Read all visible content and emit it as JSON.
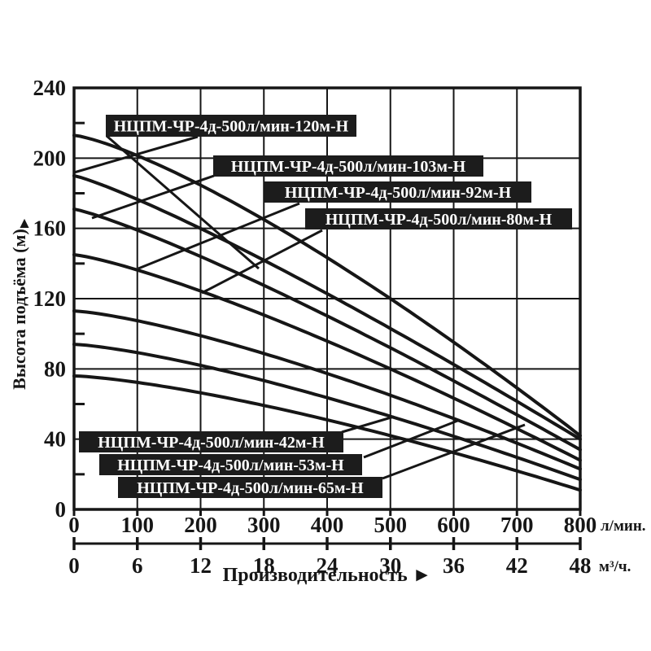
{
  "colors": {
    "ink": "#161616",
    "background": "#ffffff",
    "label_box_bg": "#1c1c1c",
    "label_text": "#ffffff"
  },
  "y_axis": {
    "title": "Высота подъёма (м)",
    "arrow": "▲",
    "major_ticks": [
      0,
      40,
      80,
      120,
      160,
      200,
      240
    ],
    "minor_step": 20
  },
  "x_axis": {
    "title": "Производительность",
    "arrow": "►",
    "primary": {
      "unit": "л/мин.",
      "ticks": [
        0,
        100,
        200,
        300,
        400,
        500,
        600,
        700,
        800
      ]
    },
    "secondary": {
      "unit": "м³/ч.",
      "ticks": [
        0,
        6,
        12,
        18,
        24,
        30,
        36,
        42,
        48
      ]
    }
  },
  "chart_data": {
    "type": "line",
    "title": "",
    "xlabel": "Производительность",
    "ylabel": "Высота подъёма (м)",
    "x_units": [
      "л/мин.",
      "м³/ч."
    ],
    "xlim_lpm": [
      0,
      800
    ],
    "ylim_m": [
      0,
      240
    ],
    "x_grid_step_lpm": 100,
    "y_grid_step_m": 40,
    "grid": true,
    "legend_position": "callout-boxes",
    "series": [
      {
        "name": "НЦПМ-ЧР-4д-500л/мин-120м-Н",
        "points_lpm_m": [
          [
            0,
            213
          ],
          [
            500,
            120
          ],
          [
            800,
            42
          ]
        ]
      },
      {
        "name": "НЦПМ-ЧР-4д-500л/мин-103м-Н",
        "points_lpm_m": [
          [
            0,
            190
          ],
          [
            500,
            103
          ],
          [
            800,
            40
          ]
        ]
      },
      {
        "name": "НЦПМ-ЧР-4д-500л/мин-92м-Н",
        "points_lpm_m": [
          [
            0,
            171
          ],
          [
            500,
            92
          ],
          [
            800,
            34
          ]
        ]
      },
      {
        "name": "НЦПМ-ЧР-4д-500л/мин-80м-Н",
        "points_lpm_m": [
          [
            0,
            145
          ],
          [
            500,
            80
          ],
          [
            800,
            28
          ]
        ]
      },
      {
        "name": "НЦПМ-ЧР-4д-500л/мин-65м-Н",
        "points_lpm_m": [
          [
            0,
            113
          ],
          [
            500,
            65
          ],
          [
            800,
            23
          ]
        ]
      },
      {
        "name": "НЦПМ-ЧР-4д-500л/мин-53м-Н",
        "points_lpm_m": [
          [
            0,
            94
          ],
          [
            500,
            53
          ],
          [
            800,
            17
          ]
        ]
      },
      {
        "name": "НЦПМ-ЧР-4д-500л/мин-42м-Н",
        "points_lpm_m": [
          [
            0,
            76
          ],
          [
            500,
            42
          ],
          [
            800,
            11
          ]
        ]
      }
    ]
  }
}
